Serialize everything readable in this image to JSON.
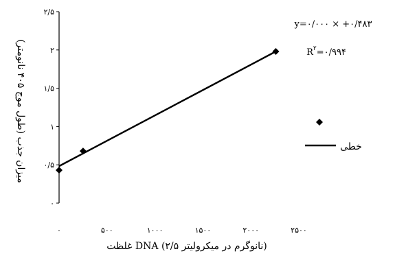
{
  "chart_data": {
    "type": "scatter",
    "title": "",
    "xlabel": "غلظت DNA (۲/۵ نانوگرم در میکرولیتر)",
    "ylabel": "میزان جذب (طول موج ۴۰۵ نانومتر)",
    "xlim": [
      0,
      2500
    ],
    "ylim": [
      0,
      2.5
    ],
    "x_ticks": [
      0,
      500,
      1000,
      1500,
      2000,
      2500
    ],
    "x_tick_labels": [
      "۰",
      "۵۰۰",
      "۱۰۰۰",
      "۱۵۰۰",
      "۲۰۰۰",
      "۲۵۰۰"
    ],
    "y_ticks": [
      0,
      0.5,
      1,
      1.5,
      2,
      2.5
    ],
    "y_tick_labels": [
      "۰",
      "۰/۵",
      "۱",
      "۱/۵",
      "۲",
      "۲/۵"
    ],
    "grid": false,
    "series": [
      {
        "values": [
          [
            0,
            0.43
          ],
          [
            250,
            0.68
          ],
          [
            2260,
            1.98
          ]
        ],
        "color": "#000000"
      }
    ],
    "trendline": {
      "x_start": 0,
      "y_start": 0.483,
      "x_end": 2260,
      "y_end": 1.98,
      "color": "#000000"
    },
    "equation": "y=۰/۰۰۰ × +۰/۴۸۳",
    "r_squared_label": "R",
    "r_squared_exponent": "۲",
    "r_squared_value": "=۰/۹۹۴",
    "legend": {
      "placement": "right",
      "line_label": "خطی"
    }
  }
}
